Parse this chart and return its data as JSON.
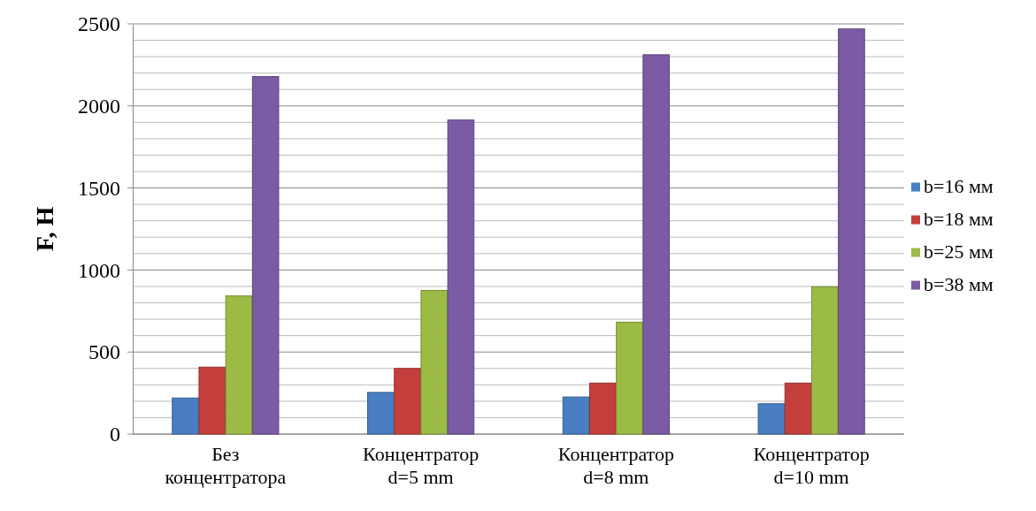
{
  "chart_data": {
    "type": "bar",
    "ylabel": "F, Н",
    "categories": [
      "Без концентратора",
      "Концентратор d=5 mm",
      "Концентратор d=8 mm",
      "Концентратор d=10 mm"
    ],
    "series": [
      {
        "name": "b=16 мм",
        "color": "#4a7ec2",
        "values": [
          220,
          254,
          226,
          185
        ]
      },
      {
        "name": "b=18 мм",
        "color": "#c43f3b",
        "values": [
          408,
          400,
          311,
          311
        ]
      },
      {
        "name": "b=25 мм",
        "color": "#9bbb45",
        "values": [
          842,
          876,
          682,
          898
        ]
      },
      {
        "name": "b=38 мм",
        "color": "#7b5ba3",
        "values": [
          2179,
          1914,
          2312,
          2469
        ]
      }
    ],
    "ylim": [
      0,
      2500
    ],
    "yticks": [
      0,
      {
        "value": 100,
        "label": null
      },
      {
        "value": 200,
        "label": null
      },
      {
        "value": 300,
        "label": null
      },
      {
        "value": 400,
        "label": null
      },
      500,
      {
        "value": 600,
        "label": null
      },
      {
        "value": 700,
        "label": null
      },
      {
        "value": 800,
        "label": null
      },
      {
        "value": 900,
        "label": null
      },
      1000,
      {
        "value": 1100,
        "label": null
      },
      {
        "value": 1200,
        "label": null
      },
      {
        "value": 1300,
        "label": null
      },
      {
        "value": 1400,
        "label": null
      },
      1500,
      {
        "value": 1600,
        "label": null
      },
      {
        "value": 1700,
        "label": null
      },
      {
        "value": 1800,
        "label": null
      },
      {
        "value": 1900,
        "label": null
      },
      2000,
      {
        "value": 2100,
        "label": null
      },
      {
        "value": 2200,
        "label": null
      },
      {
        "value": 2300,
        "label": null
      },
      {
        "value": 2400,
        "label": null
      },
      2500
    ],
    "grid": "y",
    "legend": "right"
  }
}
